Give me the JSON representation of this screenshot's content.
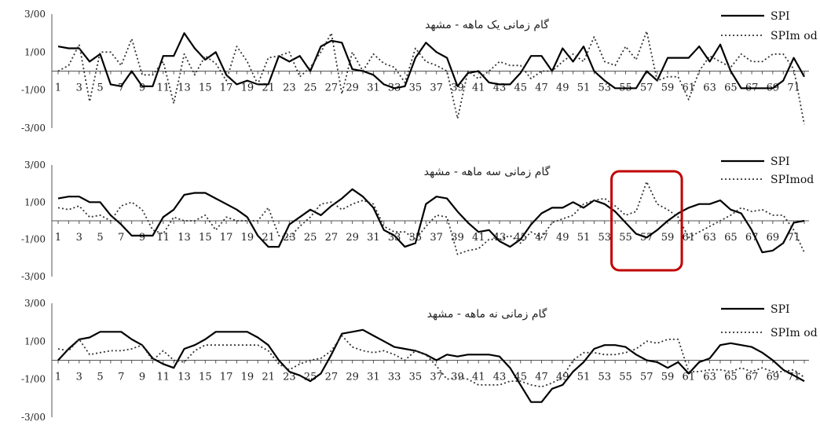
{
  "colors": {
    "spi": "#000000",
    "spimod": "#333333",
    "highlight": "#c00000",
    "axis": "#555555"
  },
  "chart_data": [
    {
      "type": "line",
      "title": "گام زمانی یک ماهه - مشهد",
      "ylim": [
        -3,
        3
      ],
      "yticks": [
        "3/00",
        "1/00",
        "-1/00",
        "-3/00"
      ],
      "ytick_values": [
        3,
        1,
        -1,
        -3
      ],
      "xticks": [
        "1",
        "3",
        "5",
        "7",
        "9",
        "11",
        "13",
        "15",
        "17",
        "19",
        "21",
        "23",
        "25",
        "27",
        "29",
        "31",
        "33",
        "35",
        "37",
        "39",
        "41",
        "43",
        "45",
        "47",
        "49",
        "51",
        "53",
        "55",
        "57",
        "59",
        "61",
        "63",
        "65",
        "67",
        "69",
        "71"
      ],
      "legend": [
        "SPI",
        "SPIm od"
      ],
      "highlight": null,
      "series": [
        {
          "name": "SPI",
          "style": "solid",
          "values": [
            1.3,
            1.2,
            1.2,
            0.5,
            0.9,
            -0.7,
            -0.8,
            0.0,
            -0.8,
            -0.8,
            0.8,
            0.8,
            2.0,
            1.2,
            0.6,
            1.0,
            -0.2,
            -0.7,
            -0.5,
            -0.7,
            -0.7,
            0.8,
            0.5,
            0.8,
            0.0,
            1.3,
            1.6,
            1.5,
            0.1,
            0.0,
            -0.2,
            -0.7,
            -0.9,
            -0.8,
            0.7,
            1.5,
            1.0,
            0.7,
            -0.8,
            -0.1,
            0.0,
            -0.6,
            -0.7,
            -0.7,
            -0.1,
            0.8,
            0.8,
            0.0,
            1.2,
            0.5,
            1.3,
            0.0,
            -0.5,
            -0.9,
            -0.9,
            -0.9,
            0.0,
            -0.5,
            0.7,
            0.7,
            0.7,
            1.3,
            0.5,
            1.4,
            0.0,
            -0.9,
            -0.9,
            -0.9,
            -0.9,
            -0.5,
            0.7,
            -0.3
          ]
        },
        {
          "name": "SPIm od",
          "style": "dotted",
          "values": [
            0.0,
            0.3,
            1.4,
            -1.6,
            1.0,
            1.0,
            0.3,
            1.7,
            -0.2,
            -0.2,
            0.5,
            -1.7,
            0.9,
            -0.2,
            0.8,
            0.4,
            -0.5,
            1.3,
            0.5,
            -0.7,
            0.7,
            0.8,
            1.0,
            -0.3,
            0.2,
            1.0,
            2.0,
            -1.2,
            1.0,
            0.0,
            0.9,
            0.4,
            0.2,
            -0.6,
            1.2,
            0.5,
            0.3,
            0.0,
            -2.5,
            0.0,
            -0.4,
            0.0,
            0.5,
            0.3,
            0.3,
            -0.4,
            0.0,
            0.0,
            0.5,
            0.9,
            0.5,
            1.8,
            0.5,
            0.3,
            1.3,
            0.6,
            2.1,
            -0.5,
            -0.3,
            -0.3,
            -1.5,
            0.0,
            0.8,
            0.5,
            0.2,
            0.9,
            0.5,
            0.5,
            0.9,
            0.9,
            0.1,
            -2.8
          ]
        }
      ]
    },
    {
      "type": "line",
      "title": "گام زمانی سه ماهه - مشهد",
      "ylim": [
        -3,
        3
      ],
      "yticks": [
        "3/00",
        "1/00",
        "-1/00",
        "-3/00"
      ],
      "ytick_values": [
        3,
        1,
        -1,
        -3
      ],
      "xticks": [
        "1",
        "3",
        "5",
        "7",
        "9",
        "11",
        "13",
        "15",
        "17",
        "19",
        "21",
        "23",
        "25",
        "27",
        "29",
        "31",
        "33",
        "35",
        "37",
        "39",
        "41",
        "43",
        "45",
        "47",
        "49",
        "51",
        "53",
        "55",
        "57",
        "59",
        "61",
        "63",
        "65",
        "67",
        "69",
        "71"
      ],
      "legend": [
        "SPI",
        "SPImod"
      ],
      "highlight": [
        55,
        59
      ],
      "series": [
        {
          "name": "SPI",
          "style": "solid",
          "values": [
            1.2,
            1.3,
            1.3,
            1.0,
            1.0,
            0.3,
            -0.2,
            -0.8,
            -0.8,
            -0.8,
            0.2,
            0.6,
            1.4,
            1.5,
            1.5,
            1.2,
            0.9,
            0.6,
            0.2,
            -0.8,
            -1.4,
            -1.4,
            -0.2,
            0.2,
            0.6,
            0.3,
            0.8,
            1.2,
            1.7,
            1.3,
            0.7,
            -0.5,
            -0.8,
            -1.4,
            -1.2,
            0.9,
            1.3,
            1.2,
            0.5,
            -0.1,
            -0.6,
            -0.5,
            -1.1,
            -1.4,
            -1.0,
            -0.2,
            0.4,
            0.7,
            0.7,
            1.0,
            0.7,
            1.1,
            0.9,
            0.5,
            -0.1,
            -0.7,
            -0.9,
            -0.5,
            0.0,
            0.4,
            0.7,
            0.9,
            0.9,
            1.1,
            0.6,
            0.4,
            -0.5,
            -1.7,
            -1.6,
            -1.2,
            -0.1,
            0.0
          ]
        },
        {
          "name": "SPImod",
          "style": "dotted",
          "values": [
            0.7,
            0.6,
            0.8,
            0.2,
            0.3,
            0.0,
            0.8,
            1.0,
            0.6,
            -0.5,
            -0.7,
            0.2,
            0.0,
            0.0,
            0.3,
            -0.5,
            0.2,
            0.0,
            0.0,
            0.0,
            0.7,
            -0.8,
            -0.9,
            -0.3,
            0.2,
            0.9,
            1.0,
            0.6,
            0.9,
            1.1,
            0.9,
            -0.3,
            -0.6,
            -0.6,
            -1.0,
            -0.3,
            0.3,
            0.2,
            -1.8,
            -1.6,
            -1.5,
            -1.0,
            -1.0,
            -0.8,
            -1.2,
            -0.6,
            -0.9,
            -0.1,
            0.1,
            0.3,
            0.9,
            1.1,
            1.2,
            0.8,
            0.3,
            0.5,
            2.1,
            0.9,
            0.6,
            0.2,
            -0.9,
            -0.6,
            -0.3,
            0.0,
            0.3,
            0.7,
            0.5,
            0.6,
            0.3,
            0.3,
            -0.5,
            -1.7
          ]
        }
      ]
    },
    {
      "type": "line",
      "title": "گام زمانی نه ماهه - مشهد",
      "ylim": [
        -3,
        3
      ],
      "yticks": [
        "3/00",
        "1/00",
        "-1/00",
        "-3/00"
      ],
      "ytick_values": [
        3,
        1,
        -1,
        -3
      ],
      "xticks": [
        "1",
        "3",
        "5",
        "7",
        "9",
        "11",
        "13",
        "15",
        "17",
        "19",
        "21",
        "23",
        "25",
        "27",
        "29",
        "31",
        "33",
        "35",
        "37",
        "39",
        "41",
        "43",
        "45",
        "47",
        "49",
        "51",
        "53",
        "55",
        "57",
        "59",
        "61",
        "63",
        "65",
        "67",
        "69",
        "71"
      ],
      "legend": [
        "SPI",
        "SPIm od"
      ],
      "highlight": null,
      "series": [
        {
          "name": "SPI",
          "style": "solid",
          "values": [
            0.0,
            0.6,
            1.1,
            1.2,
            1.5,
            1.5,
            1.5,
            1.1,
            0.8,
            0.1,
            -0.2,
            -0.4,
            0.6,
            0.8,
            1.1,
            1.5,
            1.5,
            1.5,
            1.5,
            1.2,
            0.8,
            0.0,
            -0.6,
            -0.8,
            -1.1,
            -0.7,
            0.3,
            1.4,
            1.5,
            1.6,
            1.3,
            1.0,
            0.7,
            0.6,
            0.5,
            0.3,
            0.0,
            0.3,
            0.2,
            0.3,
            0.3,
            0.3,
            0.2,
            -0.4,
            -1.3,
            -2.2,
            -2.2,
            -1.5,
            -1.3,
            -0.6,
            -0.1,
            0.6,
            0.8,
            0.8,
            0.7,
            0.3,
            0.0,
            -0.1,
            -0.4,
            -0.1,
            -0.7,
            -0.1,
            0.1,
            0.8,
            0.9,
            0.8,
            0.7,
            0.4,
            0.0,
            -0.5,
            -0.8,
            -1.1
          ]
        },
        {
          "name": "SPIm od",
          "style": "dotted",
          "values": [
            0.6,
            0.5,
            1.1,
            0.3,
            0.4,
            0.5,
            0.5,
            0.6,
            0.8,
            0.0,
            0.5,
            0.0,
            -0.1,
            0.5,
            0.8,
            0.8,
            0.8,
            0.8,
            0.8,
            0.8,
            0.5,
            -0.2,
            -0.5,
            -0.2,
            0.0,
            0.1,
            0.5,
            1.3,
            0.7,
            0.5,
            0.4,
            0.5,
            0.3,
            0.0,
            0.5,
            0.3,
            -0.3,
            -1.0,
            -0.9,
            -1.0,
            -1.3,
            -1.3,
            -1.3,
            -1.1,
            -1.1,
            -1.3,
            -1.4,
            -1.2,
            -0.9,
            0.0,
            0.4,
            0.4,
            0.3,
            0.3,
            0.4,
            0.6,
            1.0,
            0.9,
            1.1,
            1.1,
            -0.6,
            -0.6,
            -0.5,
            -0.5,
            -0.6,
            -0.4,
            -0.6,
            -0.4,
            -0.6,
            -0.6,
            -0.5,
            -0.9
          ]
        }
      ]
    }
  ]
}
